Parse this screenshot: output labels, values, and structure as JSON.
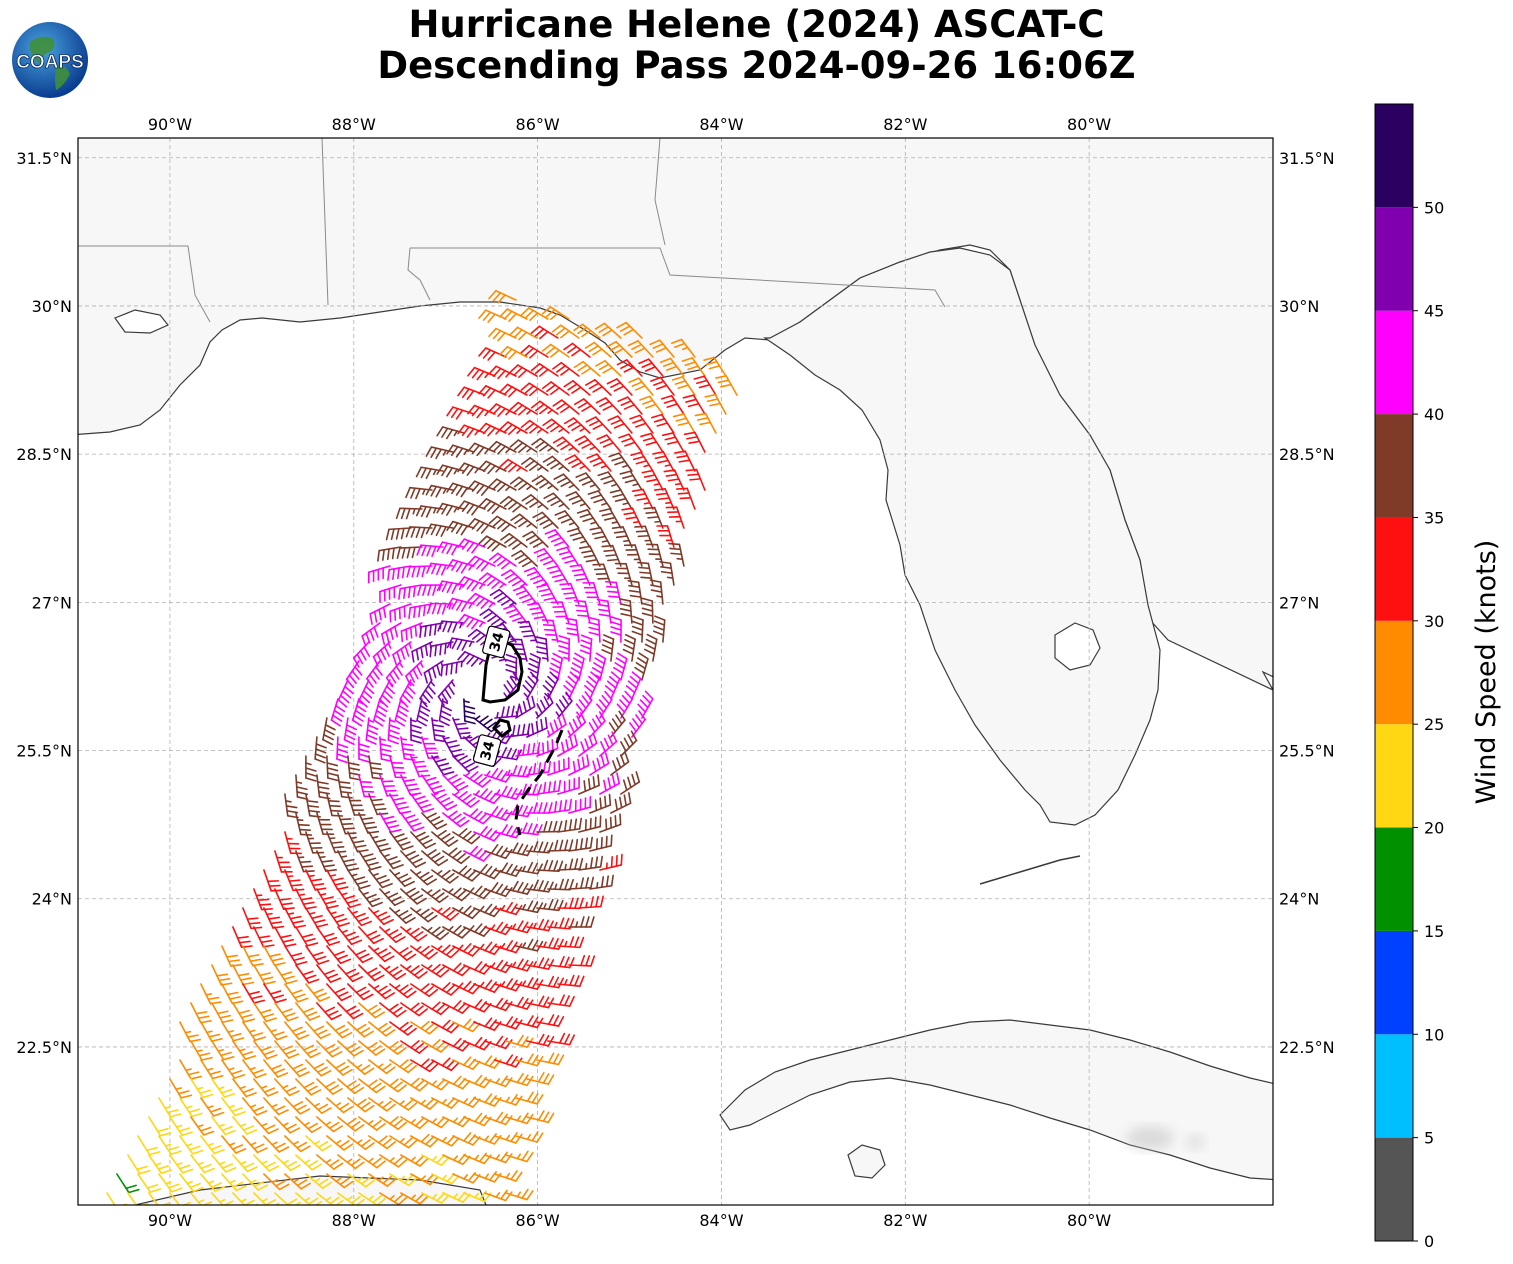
{
  "title": {
    "line1": "Hurricane Helene (2024) ASCAT-C",
    "line2": "Descending Pass 2024-09-26 16:06Z"
  },
  "logo": {
    "text": "COAPS",
    "icon": "globe-logo"
  },
  "map": {
    "lon_range": [
      -91,
      -78
    ],
    "lat_range": [
      20.9,
      31.7
    ],
    "lon_ticks": [
      {
        "value": -90,
        "label": "90°W"
      },
      {
        "value": -88,
        "label": "88°W"
      },
      {
        "value": -86,
        "label": "86°W"
      },
      {
        "value": -84,
        "label": "84°W"
      },
      {
        "value": -82,
        "label": "82°W"
      },
      {
        "value": -80,
        "label": "80°W"
      }
    ],
    "lat_ticks": [
      {
        "value": 31.5,
        "label": "31.5°N"
      },
      {
        "value": 30,
        "label": "30°N"
      },
      {
        "value": 28.5,
        "label": "28.5°N"
      },
      {
        "value": 27,
        "label": "27°N"
      },
      {
        "value": 25.5,
        "label": "25.5°N"
      },
      {
        "value": 24,
        "label": "24°N"
      },
      {
        "value": 22.5,
        "label": "22.5°N"
      }
    ],
    "storm_center": {
      "lon": -86.6,
      "lat": 26.1
    },
    "contour_labels": [
      {
        "text": "34",
        "lon": -86.45,
        "lat": 26.6
      },
      {
        "text": "34",
        "lon": -86.55,
        "lat": 25.5
      }
    ]
  },
  "colors": {
    "land": "#f7f7f7",
    "coast": "#333333",
    "grid": "#b0b0b0"
  },
  "colorbar": {
    "label": "Wind Speed (knots)",
    "bins": [
      {
        "min": 0,
        "max": 5,
        "color": "#555555"
      },
      {
        "min": 5,
        "max": 10,
        "color": "#00bfff"
      },
      {
        "min": 10,
        "max": 15,
        "color": "#0040ff"
      },
      {
        "min": 15,
        "max": 20,
        "color": "#009000"
      },
      {
        "min": 20,
        "max": 25,
        "color": "#ffd712"
      },
      {
        "min": 25,
        "max": 30,
        "color": "#ff8c00"
      },
      {
        "min": 30,
        "max": 35,
        "color": "#ff1010"
      },
      {
        "min": 35,
        "max": 40,
        "color": "#7f3a28"
      },
      {
        "min": 40,
        "max": 45,
        "color": "#ff00ff"
      },
      {
        "min": 45,
        "max": 50,
        "color": "#8000b0"
      },
      {
        "min": 50,
        "max": 55,
        "color": "#2a0060"
      }
    ],
    "ticks": [
      "0",
      "5",
      "10",
      "15",
      "20",
      "25",
      "30",
      "35",
      "40",
      "45",
      "50"
    ]
  }
}
